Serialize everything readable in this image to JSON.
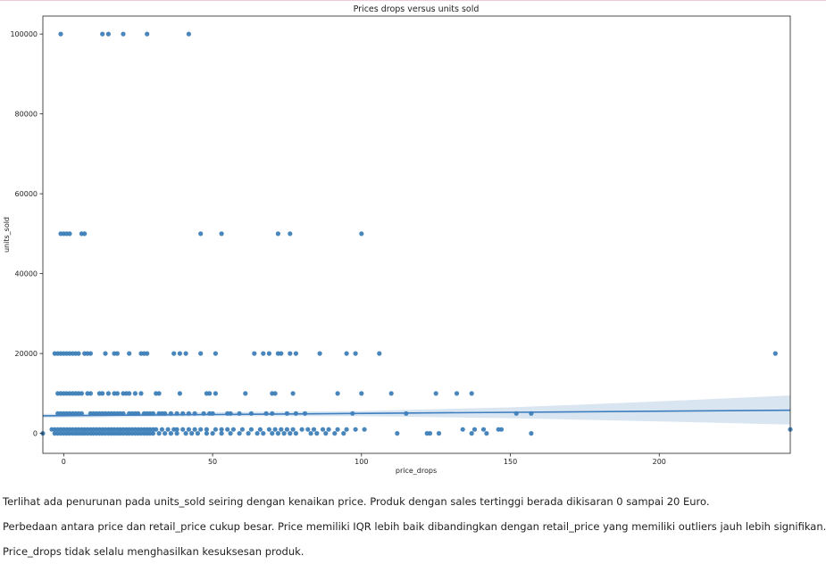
{
  "chart_data": {
    "type": "scatter",
    "title": "Prices drops versus units sold",
    "xlabel": "price_drops",
    "ylabel": "units_sold",
    "xlim": [
      -7,
      244
    ],
    "ylim": [
      -5000,
      104500
    ],
    "xticks": [
      0,
      50,
      100,
      150,
      200
    ],
    "yticks": [
      0,
      20000,
      40000,
      60000,
      80000,
      100000
    ],
    "xtick_labels": [
      "0",
      "50",
      "100",
      "150",
      "200"
    ],
    "ytick_labels": [
      "0",
      "20000",
      "40000",
      "60000",
      "80000",
      "100000"
    ],
    "grid": false,
    "point_color": "#3e7fb8",
    "regression": {
      "line": [
        [
          -7,
          4400
        ],
        [
          244,
          5800
        ]
      ],
      "ci_upper": [
        [
          -7,
          4900
        ],
        [
          50,
          5300
        ],
        [
          100,
          5600
        ],
        [
          150,
          6500
        ],
        [
          200,
          8000
        ],
        [
          244,
          9500
        ]
      ],
      "ci_lower": [
        [
          -7,
          3900
        ],
        [
          50,
          4300
        ],
        [
          100,
          4300
        ],
        [
          150,
          3800
        ],
        [
          200,
          3000
        ],
        [
          244,
          2200
        ]
      ],
      "color": "#3f7ebf",
      "band_color": "#b9d1e8"
    },
    "points": [
      [
        -1,
        100000
      ],
      [
        13,
        100000
      ],
      [
        15,
        100000
      ],
      [
        20,
        100000
      ],
      [
        28,
        100000
      ],
      [
        42,
        100000
      ],
      [
        -1,
        50000
      ],
      [
        0,
        50000
      ],
      [
        1,
        50000
      ],
      [
        2,
        50000
      ],
      [
        6,
        50000
      ],
      [
        7,
        50000
      ],
      [
        46,
        50000
      ],
      [
        53,
        50000
      ],
      [
        72,
        50000
      ],
      [
        76,
        50000
      ],
      [
        100,
        50000
      ],
      [
        -3,
        20000
      ],
      [
        -2,
        20000
      ],
      [
        -1,
        20000
      ],
      [
        0,
        20000
      ],
      [
        1,
        20000
      ],
      [
        2,
        20000
      ],
      [
        3,
        20000
      ],
      [
        4,
        20000
      ],
      [
        5,
        20000
      ],
      [
        7,
        20000
      ],
      [
        8,
        20000
      ],
      [
        9,
        20000
      ],
      [
        14,
        20000
      ],
      [
        17,
        20000
      ],
      [
        18,
        20000
      ],
      [
        22,
        20000
      ],
      [
        26,
        20000
      ],
      [
        27,
        20000
      ],
      [
        28,
        20000
      ],
      [
        37,
        20000
      ],
      [
        39,
        20000
      ],
      [
        41,
        20000
      ],
      [
        46,
        20000
      ],
      [
        51,
        20000
      ],
      [
        64,
        20000
      ],
      [
        67,
        20000
      ],
      [
        69,
        20000
      ],
      [
        72,
        20000
      ],
      [
        73,
        20000
      ],
      [
        76,
        20000
      ],
      [
        78,
        20000
      ],
      [
        86,
        20000
      ],
      [
        95,
        20000
      ],
      [
        98,
        20000
      ],
      [
        106,
        20000
      ],
      [
        239,
        20000
      ],
      [
        -2,
        10000
      ],
      [
        -1,
        10000
      ],
      [
        0,
        10000
      ],
      [
        1,
        10000
      ],
      [
        2,
        10000
      ],
      [
        3,
        10000
      ],
      [
        4,
        10000
      ],
      [
        5,
        10000
      ],
      [
        6,
        10000
      ],
      [
        8,
        10000
      ],
      [
        9,
        10000
      ],
      [
        12,
        10000
      ],
      [
        13,
        10000
      ],
      [
        15,
        10000
      ],
      [
        17,
        10000
      ],
      [
        18,
        10000
      ],
      [
        20,
        10000
      ],
      [
        21,
        10000
      ],
      [
        22,
        10000
      ],
      [
        24,
        10000
      ],
      [
        26,
        10000
      ],
      [
        31,
        10000
      ],
      [
        32,
        10000
      ],
      [
        39,
        10000
      ],
      [
        48,
        10000
      ],
      [
        49,
        10000
      ],
      [
        51,
        10000
      ],
      [
        61,
        10000
      ],
      [
        70,
        10000
      ],
      [
        71,
        10000
      ],
      [
        77,
        10000
      ],
      [
        92,
        10000
      ],
      [
        100,
        10000
      ],
      [
        110,
        10000
      ],
      [
        125,
        10000
      ],
      [
        132,
        10000
      ],
      [
        137,
        10000
      ],
      [
        -2,
        5000
      ],
      [
        -1,
        5000
      ],
      [
        0,
        5000
      ],
      [
        1,
        5000
      ],
      [
        2,
        5000
      ],
      [
        3,
        5000
      ],
      [
        4,
        5000
      ],
      [
        5,
        5000
      ],
      [
        6,
        5000
      ],
      [
        9,
        5000
      ],
      [
        10,
        5000
      ],
      [
        11,
        5000
      ],
      [
        12,
        5000
      ],
      [
        13,
        5000
      ],
      [
        14,
        5000
      ],
      [
        15,
        5000
      ],
      [
        16,
        5000
      ],
      [
        17,
        5000
      ],
      [
        18,
        5000
      ],
      [
        19,
        5000
      ],
      [
        20,
        5000
      ],
      [
        22,
        5000
      ],
      [
        23,
        5000
      ],
      [
        24,
        5000
      ],
      [
        25,
        5000
      ],
      [
        27,
        5000
      ],
      [
        28,
        5000
      ],
      [
        29,
        5000
      ],
      [
        30,
        5000
      ],
      [
        32,
        5000
      ],
      [
        33,
        5000
      ],
      [
        34,
        5000
      ],
      [
        36,
        5000
      ],
      [
        38,
        5000
      ],
      [
        40,
        5000
      ],
      [
        42,
        5000
      ],
      [
        44,
        5000
      ],
      [
        47,
        5000
      ],
      [
        49,
        5000
      ],
      [
        50,
        5000
      ],
      [
        55,
        5000
      ],
      [
        56,
        5000
      ],
      [
        59,
        5000
      ],
      [
        63,
        5000
      ],
      [
        68,
        5000
      ],
      [
        70,
        5000
      ],
      [
        75,
        5000
      ],
      [
        78,
        5000
      ],
      [
        81,
        5000
      ],
      [
        97,
        5000
      ],
      [
        115,
        5000
      ],
      [
        152,
        5000
      ],
      [
        157,
        5000
      ],
      [
        -4,
        1000
      ],
      [
        -3,
        1000
      ],
      [
        -2,
        1000
      ],
      [
        -1,
        1000
      ],
      [
        0,
        1000
      ],
      [
        1,
        1000
      ],
      [
        2,
        1000
      ],
      [
        3,
        1000
      ],
      [
        4,
        1000
      ],
      [
        5,
        1000
      ],
      [
        6,
        1000
      ],
      [
        7,
        1000
      ],
      [
        8,
        1000
      ],
      [
        9,
        1000
      ],
      [
        10,
        1000
      ],
      [
        11,
        1000
      ],
      [
        12,
        1000
      ],
      [
        13,
        1000
      ],
      [
        14,
        1000
      ],
      [
        15,
        1000
      ],
      [
        16,
        1000
      ],
      [
        17,
        1000
      ],
      [
        18,
        1000
      ],
      [
        19,
        1000
      ],
      [
        20,
        1000
      ],
      [
        21,
        1000
      ],
      [
        22,
        1000
      ],
      [
        23,
        1000
      ],
      [
        24,
        1000
      ],
      [
        25,
        1000
      ],
      [
        26,
        1000
      ],
      [
        27,
        1000
      ],
      [
        28,
        1000
      ],
      [
        29,
        1000
      ],
      [
        30,
        1000
      ],
      [
        31,
        1000
      ],
      [
        33,
        1000
      ],
      [
        35,
        1000
      ],
      [
        37,
        1000
      ],
      [
        38,
        1000
      ],
      [
        40,
        1000
      ],
      [
        42,
        1000
      ],
      [
        44,
        1000
      ],
      [
        46,
        1000
      ],
      [
        48,
        1000
      ],
      [
        51,
        1000
      ],
      [
        53,
        1000
      ],
      [
        55,
        1000
      ],
      [
        57,
        1000
      ],
      [
        60,
        1000
      ],
      [
        63,
        1000
      ],
      [
        66,
        1000
      ],
      [
        69,
        1000
      ],
      [
        71,
        1000
      ],
      [
        73,
        1000
      ],
      [
        75,
        1000
      ],
      [
        77,
        1000
      ],
      [
        80,
        1000
      ],
      [
        82,
        1000
      ],
      [
        84,
        1000
      ],
      [
        87,
        1000
      ],
      [
        89,
        1000
      ],
      [
        92,
        1000
      ],
      [
        95,
        1000
      ],
      [
        98,
        1000
      ],
      [
        101,
        1000
      ],
      [
        134,
        1000
      ],
      [
        138,
        1000
      ],
      [
        141,
        1000
      ],
      [
        146,
        1000
      ],
      [
        147,
        1000
      ],
      [
        244,
        1000
      ],
      [
        -7,
        0
      ],
      [
        -3,
        0
      ],
      [
        -2,
        0
      ],
      [
        -1,
        0
      ],
      [
        0,
        0
      ],
      [
        1,
        0
      ],
      [
        2,
        0
      ],
      [
        3,
        0
      ],
      [
        4,
        0
      ],
      [
        5,
        0
      ],
      [
        6,
        0
      ],
      [
        7,
        0
      ],
      [
        8,
        0
      ],
      [
        9,
        0
      ],
      [
        10,
        0
      ],
      [
        11,
        0
      ],
      [
        12,
        0
      ],
      [
        13,
        0
      ],
      [
        14,
        0
      ],
      [
        15,
        0
      ],
      [
        16,
        0
      ],
      [
        17,
        0
      ],
      [
        18,
        0
      ],
      [
        19,
        0
      ],
      [
        20,
        0
      ],
      [
        21,
        0
      ],
      [
        22,
        0
      ],
      [
        23,
        0
      ],
      [
        24,
        0
      ],
      [
        25,
        0
      ],
      [
        26,
        0
      ],
      [
        27,
        0
      ],
      [
        28,
        0
      ],
      [
        29,
        0
      ],
      [
        30,
        0
      ],
      [
        32,
        0
      ],
      [
        34,
        0
      ],
      [
        36,
        0
      ],
      [
        38,
        0
      ],
      [
        41,
        0
      ],
      [
        43,
        0
      ],
      [
        45,
        0
      ],
      [
        48,
        0
      ],
      [
        50,
        0
      ],
      [
        53,
        0
      ],
      [
        56,
        0
      ],
      [
        59,
        0
      ],
      [
        62,
        0
      ],
      [
        65,
        0
      ],
      [
        67,
        0
      ],
      [
        70,
        0
      ],
      [
        72,
        0
      ],
      [
        74,
        0
      ],
      [
        76,
        0
      ],
      [
        78,
        0
      ],
      [
        83,
        0
      ],
      [
        85,
        0
      ],
      [
        88,
        0
      ],
      [
        91,
        0
      ],
      [
        94,
        0
      ],
      [
        112,
        0
      ],
      [
        122,
        0
      ],
      [
        123,
        0
      ],
      [
        126,
        0
      ],
      [
        137,
        0
      ],
      [
        142,
        0
      ],
      [
        157,
        0
      ]
    ]
  },
  "notes": [
    "Terlihat ada penurunan pada units_sold seiring dengan kenaikan price. Produk dengan sales tertinggi berada dikisaran 0 sampai 20 Euro.",
    "Perbedaan antara price dan retail_price cukup besar. Price memiliki IQR lebih baik dibandingkan dengan retail_price yang memiliki outliers jauh lebih signifikan.",
    "Price_drops tidak selalu menghasilkan kesuksesan produk."
  ]
}
